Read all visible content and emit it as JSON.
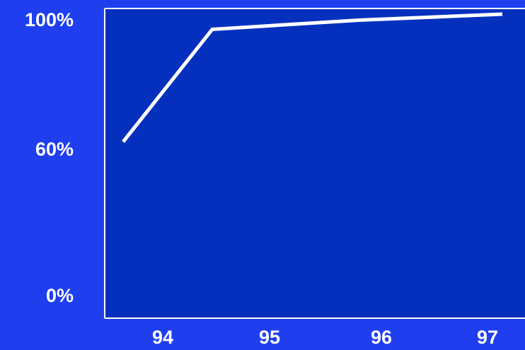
{
  "colors": {
    "page_background": "#1f3fee",
    "plot_background": "#0530bd",
    "axis": "#ffffff",
    "line": "#ffffff",
    "text": "#ffffff"
  },
  "chart_data": {
    "type": "line",
    "title": "",
    "xlabel": "",
    "ylabel": "",
    "x": [
      "94",
      "95",
      "96",
      "97"
    ],
    "x_tick_labels": [
      "94",
      "95",
      "96",
      "97"
    ],
    "y_tick_labels": [
      "100%",
      "60%",
      "0%"
    ],
    "ylim": [
      0,
      100
    ],
    "grid": false,
    "legend": "none",
    "series": [
      {
        "values": [
          58,
          95,
          98,
          100
        ]
      }
    ]
  }
}
